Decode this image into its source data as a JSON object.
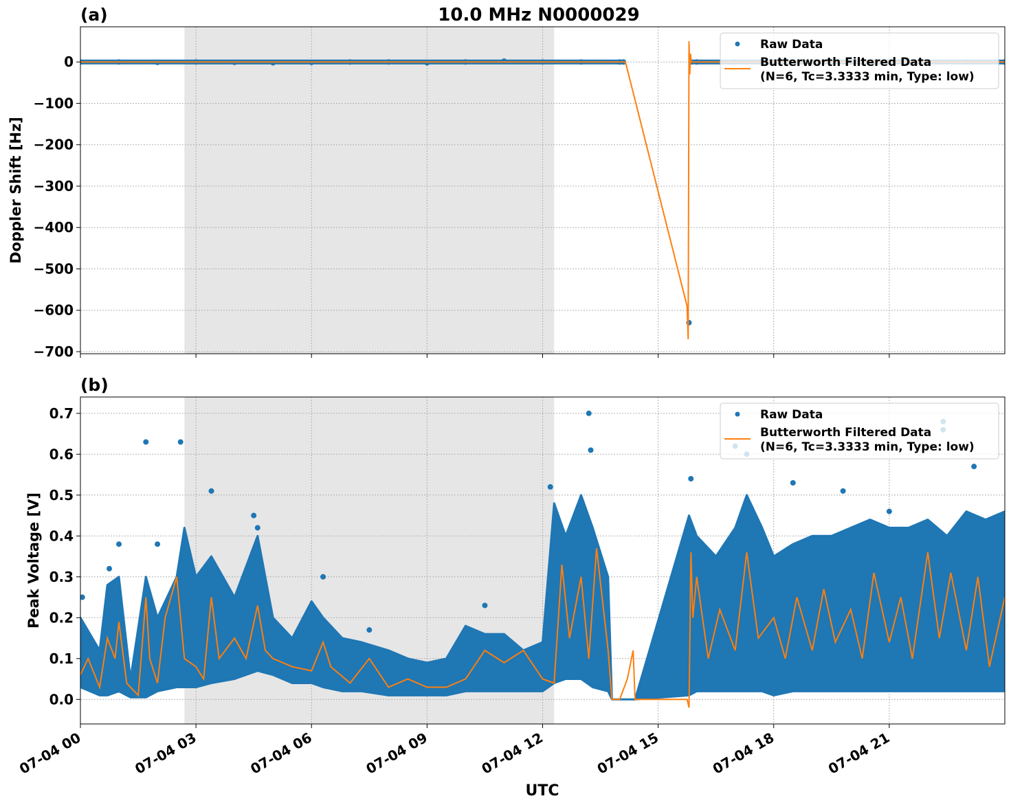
{
  "figure": {
    "title": "10.0 MHz N0000029",
    "xlabel": "UTC"
  },
  "colors": {
    "raw": "#1f77b4",
    "filtered": "#ff7f0e",
    "night_shade": "#e6e6e6",
    "grid": "#b0b0b0"
  },
  "chart_data": [
    {
      "type": "scatter",
      "panel_label": "(a)",
      "ylabel": "Doppler Shift [Hz]",
      "x_unit": "hours UTC on 07-04",
      "xlim": [
        0,
        24
      ],
      "ylim": [
        -705,
        85
      ],
      "yticks": [
        0,
        -100,
        -200,
        -300,
        -400,
        -500,
        -600,
        -700
      ],
      "ytick_labels": [
        "0",
        "−100",
        "−200",
        "−300",
        "−400",
        "−500",
        "−600",
        "−700"
      ],
      "xticks": [
        0,
        3,
        6,
        9,
        12,
        15,
        18,
        21
      ],
      "shaded_x_range": [
        2.7,
        12.3
      ],
      "grid": true,
      "legend_position": "upper right",
      "legend": [
        "Raw Data",
        "Butterworth Filtered Data",
        "(N=6, Tc=3.3333 min, Type: low)"
      ],
      "series": [
        {
          "name": "Raw Data",
          "style": "points",
          "x": [
            0,
            1,
            2,
            3,
            4,
            5,
            6,
            7,
            8,
            9,
            10,
            11,
            12,
            13,
            14,
            14.1,
            15.8,
            15.85,
            16,
            17,
            18,
            19,
            20,
            21,
            22,
            23,
            24
          ],
          "y": [
            0,
            0,
            -1,
            0,
            -1,
            -2,
            -1,
            0,
            0,
            -2,
            0,
            2,
            0,
            0,
            0,
            0,
            -630,
            0,
            0,
            0,
            0,
            0,
            0,
            0,
            0,
            0,
            0
          ]
        },
        {
          "name": "Butterworth Filtered Data",
          "style": "line",
          "x": [
            0,
            6,
            12,
            14.0,
            14.15,
            15.75,
            15.78,
            15.8,
            15.82,
            15.84,
            15.86,
            15.9,
            16.0,
            18,
            21,
            24
          ],
          "y": [
            0,
            0,
            0,
            0,
            0,
            -590,
            -670,
            50,
            -30,
            20,
            0,
            0,
            0,
            0,
            0,
            0
          ]
        }
      ]
    },
    {
      "type": "scatter",
      "panel_label": "(b)",
      "ylabel": "Peak Voltage [V]",
      "xlim": [
        0,
        24
      ],
      "ylim": [
        -0.06,
        0.74
      ],
      "yticks": [
        0.0,
        0.1,
        0.2,
        0.3,
        0.4,
        0.5,
        0.6,
        0.7
      ],
      "ytick_labels": [
        "0.0",
        "0.1",
        "0.2",
        "0.3",
        "0.4",
        "0.5",
        "0.6",
        "0.7"
      ],
      "xticks": [
        0,
        3,
        6,
        9,
        12,
        15,
        18,
        21
      ],
      "xtick_labels": [
        "07-04 00",
        "07-04 03",
        "07-04 06",
        "07-04 09",
        "07-04 12",
        "07-04 15",
        "07-04 18",
        "07-04 21"
      ],
      "shaded_x_range": [
        2.7,
        12.3
      ],
      "grid": true,
      "legend_position": "upper right",
      "legend": [
        "Raw Data",
        "Butterworth Filtered Data",
        "(N=6, Tc=3.3333 min, Type: low)"
      ],
      "series": [
        {
          "name": "Raw Data",
          "style": "band",
          "x": [
            0,
            0.5,
            0.7,
            1.0,
            1.3,
            1.7,
            2.0,
            2.5,
            2.7,
            3.0,
            3.4,
            4.0,
            4.6,
            5.0,
            5.5,
            6.0,
            6.3,
            6.8,
            7.3,
            8.0,
            8.5,
            9.0,
            9.5,
            10.0,
            10.5,
            11.0,
            11.5,
            12.0,
            12.3,
            12.6,
            13.0,
            13.3,
            13.7,
            13.8,
            14.1,
            14.4,
            15.8,
            16.0,
            16.5,
            17.0,
            17.3,
            17.7,
            18.0,
            18.5,
            19.0,
            19.5,
            20.0,
            20.5,
            21.0,
            21.5,
            22.0,
            22.5,
            23.0,
            23.5,
            24.0
          ],
          "y_low": [
            0.03,
            0.01,
            0.01,
            0.02,
            0.005,
            0.005,
            0.02,
            0.03,
            0.03,
            0.03,
            0.04,
            0.05,
            0.07,
            0.06,
            0.04,
            0.04,
            0.03,
            0.02,
            0.02,
            0.01,
            0.01,
            0.01,
            0.01,
            0.02,
            0.02,
            0.02,
            0.02,
            0.02,
            0.04,
            0.05,
            0.05,
            0.03,
            0.02,
            0.0,
            0.0,
            0.0,
            0.01,
            0.02,
            0.02,
            0.02,
            0.02,
            0.02,
            0.01,
            0.02,
            0.02,
            0.02,
            0.02,
            0.02,
            0.02,
            0.02,
            0.02,
            0.02,
            0.02,
            0.02,
            0.02
          ],
          "y_high": [
            0.2,
            0.12,
            0.28,
            0.3,
            0.05,
            0.3,
            0.2,
            0.3,
            0.42,
            0.3,
            0.35,
            0.25,
            0.4,
            0.2,
            0.15,
            0.24,
            0.2,
            0.15,
            0.14,
            0.12,
            0.1,
            0.09,
            0.1,
            0.18,
            0.16,
            0.16,
            0.12,
            0.14,
            0.48,
            0.4,
            0.5,
            0.42,
            0.3,
            0.0,
            0.0,
            0.0,
            0.45,
            0.4,
            0.35,
            0.42,
            0.5,
            0.42,
            0.35,
            0.38,
            0.4,
            0.4,
            0.42,
            0.44,
            0.42,
            0.42,
            0.44,
            0.4,
            0.46,
            0.44,
            0.46
          ]
        },
        {
          "name": "Raw Data peaks",
          "style": "points",
          "x": [
            0.05,
            0.75,
            1.0,
            1.7,
            2.0,
            2.6,
            3.4,
            4.5,
            4.6,
            6.3,
            7.5,
            10.5,
            12.2,
            13.2,
            13.25,
            15.85,
            17.0,
            17.3,
            18.5,
            19.8,
            21.0,
            22.4,
            22.4,
            23.2
          ],
          "y": [
            0.25,
            0.32,
            0.38,
            0.63,
            0.38,
            0.63,
            0.51,
            0.45,
            0.42,
            0.3,
            0.17,
            0.23,
            0.52,
            0.7,
            0.61,
            0.54,
            0.62,
            0.6,
            0.53,
            0.51,
            0.46,
            0.68,
            0.66,
            0.57
          ]
        },
        {
          "name": "Butterworth Filtered Data",
          "style": "line",
          "x": [
            0,
            0.2,
            0.5,
            0.7,
            0.9,
            1.0,
            1.2,
            1.5,
            1.7,
            1.8,
            2.0,
            2.2,
            2.5,
            2.7,
            3.0,
            3.2,
            3.4,
            3.6,
            4.0,
            4.3,
            4.6,
            4.8,
            5.0,
            5.5,
            6.0,
            6.3,
            6.5,
            7.0,
            7.5,
            8.0,
            8.5,
            9.0,
            9.5,
            10.0,
            10.5,
            11.0,
            11.5,
            12.0,
            12.3,
            12.5,
            12.7,
            13.0,
            13.2,
            13.4,
            13.7,
            13.8,
            14.0,
            14.2,
            14.35,
            14.4,
            15.75,
            15.8,
            15.85,
            15.9,
            16.0,
            16.3,
            16.6,
            17.0,
            17.3,
            17.6,
            18.0,
            18.3,
            18.6,
            19.0,
            19.3,
            19.6,
            20.0,
            20.3,
            20.6,
            21.0,
            21.3,
            21.6,
            22.0,
            22.3,
            22.6,
            23.0,
            23.3,
            23.6,
            24.0
          ],
          "y": [
            0.06,
            0.1,
            0.03,
            0.15,
            0.1,
            0.19,
            0.04,
            0.01,
            0.25,
            0.1,
            0.04,
            0.2,
            0.3,
            0.1,
            0.08,
            0.05,
            0.25,
            0.1,
            0.15,
            0.1,
            0.23,
            0.12,
            0.1,
            0.08,
            0.07,
            0.14,
            0.08,
            0.04,
            0.1,
            0.03,
            0.05,
            0.03,
            0.03,
            0.05,
            0.12,
            0.09,
            0.12,
            0.05,
            0.04,
            0.33,
            0.15,
            0.3,
            0.1,
            0.37,
            0.12,
            0.0,
            0.0,
            0.05,
            0.12,
            0.0,
            0.0,
            -0.02,
            0.36,
            0.2,
            0.3,
            0.1,
            0.22,
            0.12,
            0.36,
            0.15,
            0.2,
            0.1,
            0.25,
            0.12,
            0.27,
            0.14,
            0.22,
            0.1,
            0.31,
            0.14,
            0.25,
            0.1,
            0.36,
            0.15,
            0.31,
            0.12,
            0.3,
            0.08,
            0.25
          ]
        }
      ]
    }
  ]
}
